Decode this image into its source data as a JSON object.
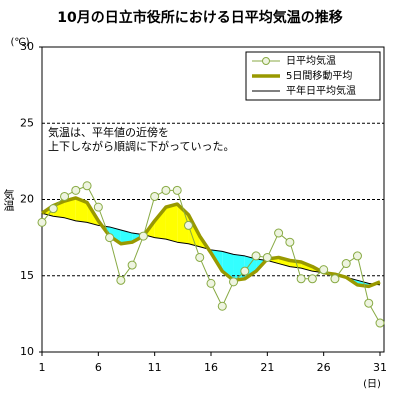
{
  "chart_data": {
    "type": "line",
    "title": "10月の日立市役所における日平均気温の推移",
    "y_unit": "(℃)",
    "y_label": "気温",
    "x_unit": "(日)",
    "annotation": [
      "気温は、平年値の近傍を",
      "上下しながら順調に下がっていった。"
    ],
    "x": [
      1,
      2,
      3,
      4,
      5,
      6,
      7,
      8,
      9,
      10,
      11,
      12,
      13,
      14,
      15,
      16,
      17,
      18,
      19,
      20,
      21,
      22,
      23,
      24,
      25,
      26,
      27,
      28,
      29,
      30,
      31
    ],
    "xlim": [
      1,
      31
    ],
    "xticks": [
      1,
      6,
      11,
      16,
      21,
      26,
      31
    ],
    "ylim": [
      10,
      30
    ],
    "yticks": [
      10,
      15,
      20,
      25,
      30
    ],
    "grid": true,
    "legend": "upper right",
    "above_color": "#ffff00",
    "below_color": "#33ffff",
    "series": [
      {
        "name": "日平均気温",
        "color": "#88aa44",
        "marker": "circle",
        "values": [
          18.5,
          19.4,
          20.2,
          20.6,
          20.9,
          19.5,
          17.5,
          14.7,
          15.7,
          17.6,
          20.2,
          20.6,
          20.6,
          18.3,
          16.2,
          14.5,
          13.0,
          14.6,
          15.3,
          16.3,
          16.2,
          17.8,
          17.2,
          14.8,
          14.8,
          15.4,
          14.8,
          15.8,
          16.3,
          13.2,
          11.9
        ]
      },
      {
        "name": "5日間移動平均",
        "color": "#999900",
        "values": [
          19.1,
          19.6,
          19.9,
          20.1,
          19.8,
          18.6,
          17.6,
          17.1,
          17.2,
          17.6,
          18.6,
          19.5,
          19.7,
          19.0,
          17.6,
          16.5,
          15.3,
          14.7,
          14.8,
          15.3,
          16.1,
          16.2,
          16.0,
          15.9,
          15.6,
          15.2,
          15.1,
          14.9,
          14.4,
          14.3,
          14.6
        ]
      },
      {
        "name": "平年日平均気温",
        "color": "#000000",
        "values": [
          19.1,
          18.9,
          18.8,
          18.6,
          18.5,
          18.3,
          18.2,
          18.0,
          17.8,
          17.7,
          17.5,
          17.4,
          17.2,
          17.1,
          16.9,
          16.7,
          16.6,
          16.4,
          16.3,
          16.1,
          16.0,
          15.8,
          15.6,
          15.5,
          15.3,
          15.2,
          15.0,
          14.9,
          14.7,
          14.5,
          14.4
        ]
      }
    ]
  }
}
